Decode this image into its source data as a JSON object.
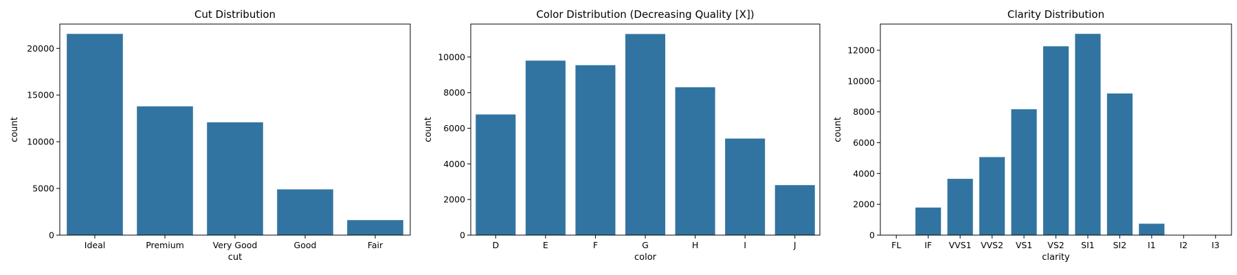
{
  "chart_data": [
    {
      "type": "bar",
      "title": "Cut Distribution",
      "xlabel": "cut",
      "ylabel": "count",
      "categories": [
        "Ideal",
        "Premium",
        "Very Good",
        "Good",
        "Fair"
      ],
      "values": [
        21550,
        13790,
        12080,
        4900,
        1610
      ],
      "ylim": [
        0,
        22600
      ],
      "yticks": [
        0,
        5000,
        10000,
        15000,
        20000
      ],
      "color": "#3274a1",
      "grid": false
    },
    {
      "type": "bar",
      "title": "Color Distribution (Decreasing Quality [X])",
      "xlabel": "color",
      "ylabel": "count",
      "categories": [
        "D",
        "E",
        "F",
        "G",
        "H",
        "I",
        "J"
      ],
      "values": [
        6775,
        9797,
        9542,
        11292,
        8304,
        5422,
        2808
      ],
      "ylim": [
        0,
        11850
      ],
      "yticks": [
        0,
        2000,
        4000,
        6000,
        8000,
        10000
      ],
      "color": "#3274a1",
      "grid": false
    },
    {
      "type": "bar",
      "title": "Clarity Distribution",
      "xlabel": "clarity",
      "ylabel": "count",
      "categories": [
        "FL",
        "IF",
        "VVS1",
        "VVS2",
        "VS1",
        "VS2",
        "SI1",
        "SI2",
        "I1",
        "I2",
        "I3"
      ],
      "values": [
        0,
        1790,
        3655,
        5066,
        8171,
        12258,
        13065,
        9194,
        741,
        0,
        0
      ],
      "ylim": [
        0,
        13700
      ],
      "yticks": [
        0,
        2000,
        4000,
        6000,
        8000,
        10000,
        12000
      ],
      "color": "#3274a1",
      "grid": false
    }
  ]
}
